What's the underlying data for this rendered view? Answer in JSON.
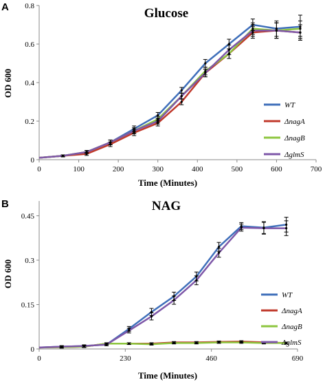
{
  "chart_data": [
    {
      "type": "line",
      "panel_label": "A",
      "title": "Glucose",
      "xlabel": "Time (Minutes)",
      "ylabel": "OD 600",
      "xlim": [
        0,
        700
      ],
      "ylim": [
        0,
        0.8
      ],
      "xticks": [
        0,
        100,
        200,
        300,
        400,
        500,
        600,
        700
      ],
      "yticks": [
        0,
        0.2,
        0.4,
        0.6,
        0.8
      ],
      "xtick_labels": [
        "0",
        "100",
        "200",
        "300",
        "400",
        "500",
        "600",
        "700"
      ],
      "ytick_labels": [
        "0",
        "0.2",
        "0.4",
        "0.6",
        "0.8"
      ],
      "legend_position": "right",
      "x": [
        0,
        60,
        120,
        180,
        240,
        300,
        360,
        420,
        480,
        540,
        600,
        660
      ],
      "series": [
        {
          "name": "WT",
          "color": "#3F6FBA",
          "values": [
            0.01,
            0.02,
            0.04,
            0.09,
            0.16,
            0.23,
            0.36,
            0.5,
            0.6,
            0.7,
            0.68,
            0.69
          ],
          "errors": [
            0.005,
            0.005,
            0.008,
            0.012,
            0.015,
            0.015,
            0.015,
            0.02,
            0.025,
            0.03,
            0.04,
            0.06
          ]
        },
        {
          "name": "ΔnagA",
          "color": "#C0392B",
          "values": [
            0.01,
            0.02,
            0.03,
            0.08,
            0.14,
            0.19,
            0.3,
            0.45,
            0.55,
            0.66,
            0.67,
            0.66
          ],
          "errors": [
            0.005,
            0.005,
            0.008,
            0.012,
            0.015,
            0.015,
            0.015,
            0.02,
            0.025,
            0.03,
            0.04,
            0.04
          ]
        },
        {
          "name": "ΔnagB",
          "color": "#8DC63F",
          "values": [
            0.01,
            0.02,
            0.04,
            0.09,
            0.15,
            0.21,
            0.33,
            0.46,
            0.55,
            0.68,
            0.67,
            0.68
          ],
          "errors": [
            0.005,
            0.005,
            0.008,
            0.012,
            0.015,
            0.015,
            0.015,
            0.02,
            0.025,
            0.03,
            0.04,
            0.04
          ]
        },
        {
          "name": "ΔglmS",
          "color": "#7E57A8",
          "values": [
            0.01,
            0.02,
            0.04,
            0.09,
            0.15,
            0.2,
            0.33,
            0.45,
            0.57,
            0.67,
            0.67,
            0.66
          ],
          "errors": [
            0.005,
            0.005,
            0.008,
            0.012,
            0.015,
            0.015,
            0.015,
            0.02,
            0.025,
            0.03,
            0.04,
            0.04
          ]
        }
      ]
    },
    {
      "type": "line",
      "panel_label": "B",
      "title": "NAG",
      "xlabel": "Time (Minutes)",
      "ylabel": "OD 600",
      "xlim": [
        0,
        690
      ],
      "ylim": [
        0,
        0.5
      ],
      "xticks": [
        0,
        230,
        460,
        690
      ],
      "yticks": [
        0,
        0.15,
        0.3,
        0.45
      ],
      "xtick_labels": [
        "0",
        "230",
        "460",
        "690"
      ],
      "ytick_labels": [
        "0",
        "0.15",
        "0.3",
        "0.45"
      ],
      "legend_position": "right",
      "x": [
        0,
        60,
        120,
        180,
        240,
        300,
        360,
        420,
        480,
        540,
        600,
        660
      ],
      "series": [
        {
          "name": "WT",
          "color": "#3F6FBA",
          "values": [
            0.005,
            0.008,
            0.01,
            0.015,
            0.068,
            0.125,
            0.178,
            0.245,
            0.345,
            0.415,
            0.41,
            0.42
          ],
          "errors": [
            0.003,
            0.003,
            0.004,
            0.004,
            0.008,
            0.012,
            0.014,
            0.015,
            0.015,
            0.012,
            0.02,
            0.025
          ]
        },
        {
          "name": "ΔnagA",
          "color": "#C0392B",
          "values": [
            0.005,
            0.006,
            0.008,
            0.018,
            0.018,
            0.018,
            0.022,
            0.022,
            0.024,
            0.025,
            0.022,
            0.02
          ],
          "errors": [
            0.003,
            0.003,
            0.003,
            0.003,
            0.003,
            0.003,
            0.003,
            0.003,
            0.003,
            0.003,
            0.003,
            0.003
          ]
        },
        {
          "name": "ΔnagB",
          "color": "#8DC63F",
          "values": [
            0.005,
            0.006,
            0.008,
            0.018,
            0.018,
            0.016,
            0.02,
            0.02,
            0.022,
            0.022,
            0.02,
            0.02
          ],
          "errors": [
            0.003,
            0.003,
            0.003,
            0.003,
            0.003,
            0.003,
            0.003,
            0.003,
            0.003,
            0.003,
            0.003,
            0.003
          ]
        },
        {
          "name": "ΔglmS",
          "color": "#7E57A8",
          "values": [
            0.005,
            0.008,
            0.01,
            0.015,
            0.062,
            0.11,
            0.165,
            0.232,
            0.325,
            0.41,
            0.408,
            0.408
          ],
          "errors": [
            0.003,
            0.003,
            0.004,
            0.004,
            0.008,
            0.012,
            0.014,
            0.015,
            0.015,
            0.012,
            0.02,
            0.025
          ]
        }
      ]
    }
  ]
}
